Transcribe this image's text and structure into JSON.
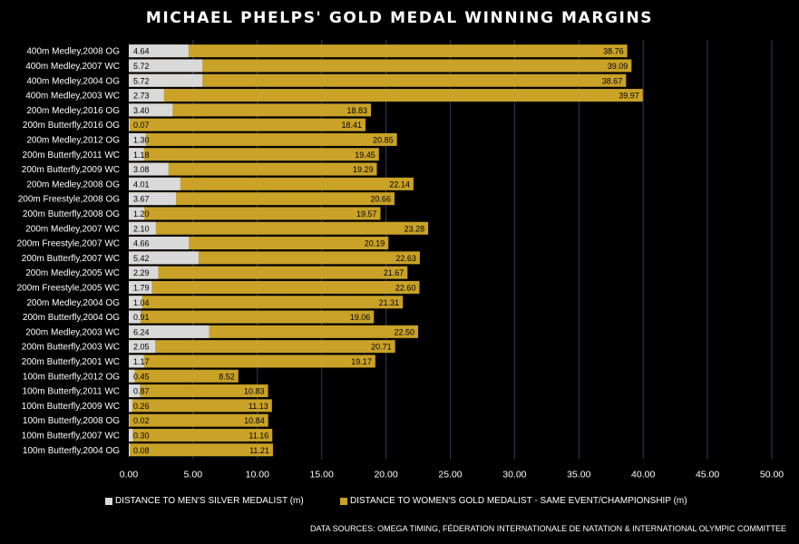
{
  "chart_data": {
    "type": "bar",
    "orientation": "horizontal",
    "stacked": true,
    "title": "MICHAEL PHELPS' GOLD MEDAL WINNING MARGINS",
    "categories": [
      "400m Medley,2008 OG",
      "400m Medley,2007 WC",
      "400m Medley,2004 OG",
      "400m Medley,2003 WC",
      "200m Medley,2016 OG",
      "200m Butterfly,2016 OG",
      "200m Medley,2012 OG",
      "200m Butterfly,2011 WC",
      "200m Butterfly,2009 WC",
      "200m Medley,2008 OG",
      "200m Freestyle,2008 OG",
      "200m Butterfly,2008 OG",
      "200m Medley,2007 WC",
      "200m Freestyle,2007 WC",
      "200m Butterfly,2007 WC",
      "200m Medley,2005 WC",
      "200m Freestyle,2005 WC",
      "200m Medley,2004 OG",
      "200m Butterfly,2004 OG",
      "200m Medley,2003 WC",
      "200m Butterfly,2003 WC",
      "200m Butterfly,2001 WC",
      "100m Butterfly,2012 OG",
      "100m Butterfly,2011 WC",
      "100m Butterfly,2009 WC",
      "100m Butterfly,2008 OG",
      "100m Butterfly,2007 WC",
      "100m Butterfly,2004 OG"
    ],
    "series": [
      {
        "name": "DISTANCE TO MEN'S SILVER MEDALIST (m)",
        "color": "#d9d9d9",
        "values": [
          4.64,
          5.72,
          5.72,
          2.73,
          3.4,
          0.07,
          1.3,
          1.18,
          3.08,
          4.01,
          3.67,
          1.2,
          2.1,
          4.66,
          5.42,
          2.29,
          1.79,
          1.04,
          0.91,
          6.24,
          2.05,
          1.17,
          0.45,
          0.87,
          0.26,
          0.02,
          0.3,
          0.08
        ]
      },
      {
        "name": "DISTANCE TO WOMEN'S GOLD MEDALIST - SAME EVENT/CHAMPIONSHIP (m)",
        "color": "#c9a227",
        "values": [
          38.76,
          39.09,
          38.67,
          39.97,
          18.83,
          18.41,
          20.85,
          19.45,
          19.29,
          22.14,
          20.66,
          19.57,
          23.28,
          20.19,
          22.63,
          21.67,
          22.6,
          21.31,
          19.06,
          22.5,
          20.71,
          19.17,
          8.52,
          10.83,
          11.13,
          10.84,
          11.16,
          11.21
        ]
      }
    ],
    "xlim": [
      0,
      50
    ],
    "xticks": [
      "0.00",
      "5.00",
      "10.00",
      "15.00",
      "20.00",
      "25.00",
      "30.00",
      "35.00",
      "40.00",
      "45.00",
      "50.00"
    ],
    "grid": "vertical",
    "legend_position": "bottom",
    "xlabel": "",
    "ylabel": ""
  },
  "legend": {
    "silver_label": "DISTANCE TO MEN'S SILVER MEDALIST (m)",
    "gold_label": "DISTANCE TO WOMEN'S GOLD MEDALIST - SAME EVENT/CHAMPIONSHIP (m)"
  },
  "source_note": "DATA SOURCES: OMEGA TIMING, FÉDERATION INTERNATIONALE DE NATATION & INTERNATIONAL OLYMPIC COMMITTEE",
  "colors": {
    "background": "#000000",
    "silver": "#d9d9d9",
    "gold": "#c9a227",
    "grid": "#2b3350"
  }
}
